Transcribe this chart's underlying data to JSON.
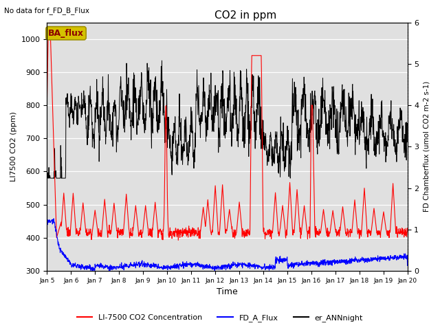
{
  "title": "CO2 in ppm",
  "top_left_text": "No data for f_FD_B_Flux",
  "xlabel": "Time",
  "ylabel_left": "LI7500 CO2 (ppm)",
  "ylabel_right": "FD Chamberflux (umol CO2 m-2 s-1)",
  "ylim_left": [
    300,
    1050
  ],
  "ylim_right": [
    0.0,
    6.0
  ],
  "bg_color": "#e0e0e0",
  "annotation_text": "BA_flux",
  "xtick_labels": [
    "Jan 5",
    "Jan 6",
    "Jan 7",
    "Jan 8",
    "Jan 9",
    "Jan 10",
    "Jan 11",
    "Jan 12",
    "Jan 13",
    "Jan 14",
    "Jan 15",
    "Jan 16",
    "Jan 17",
    "Jan 18",
    "Jan 19",
    "Jan 20"
  ],
  "xtick_positions": [
    5,
    6,
    7,
    8,
    9,
    10,
    11,
    12,
    13,
    14,
    15,
    16,
    17,
    18,
    19,
    20
  ],
  "legend_labels": [
    "LI-7500 CO2 Concentration",
    "FD_A_Flux",
    "er_ANNnight"
  ]
}
